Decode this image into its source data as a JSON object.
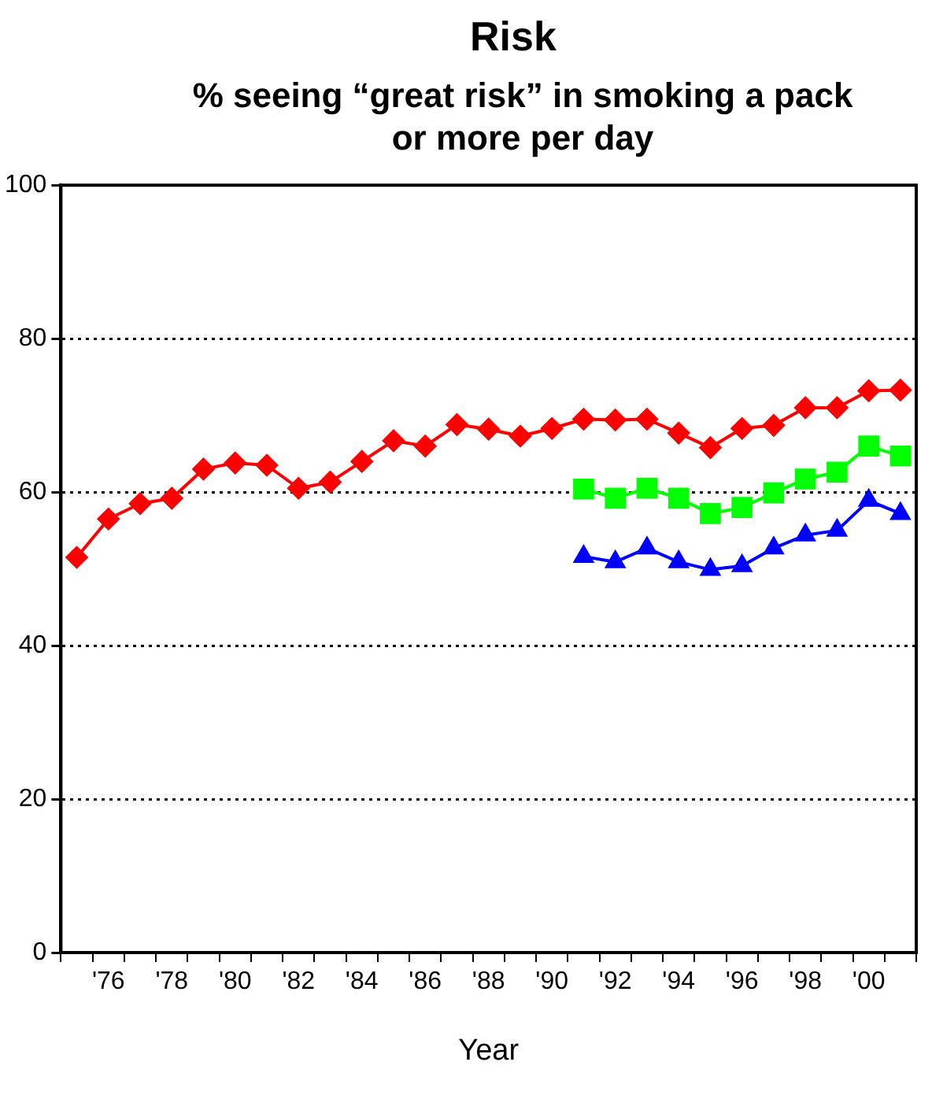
{
  "chart_data": {
    "type": "line",
    "title": "Risk",
    "subtitle": "% seeing “great risk” in smoking a pack or more per day",
    "xlabel": "Year",
    "categories": [
      null,
      "'76",
      null,
      "'78",
      null,
      "'80",
      null,
      "'82",
      null,
      "'84",
      null,
      "'86",
      null,
      "'88",
      null,
      "'90",
      null,
      "'92",
      null,
      "'94",
      null,
      "'96",
      null,
      "'98",
      null,
      "'00",
      null
    ],
    "series": [
      {
        "color": "#ff0000",
        "marker": "diamond",
        "values": [
          51.5,
          56.5,
          58.5,
          59.2,
          63,
          63.8,
          63.5,
          60.5,
          61.3,
          64,
          66.7,
          66,
          68.8,
          68.2,
          67.3,
          68.3,
          69.5,
          69.4,
          69.5,
          67.7,
          65.8,
          68.3,
          68.7,
          71,
          71,
          73.2,
          73.3
        ]
      },
      {
        "color": "#00ff00",
        "marker": "square",
        "values": [
          null,
          null,
          null,
          null,
          null,
          null,
          null,
          null,
          null,
          null,
          null,
          null,
          null,
          null,
          null,
          null,
          60.4,
          59.2,
          60.5,
          59.2,
          57.2,
          58,
          59.9,
          61.7,
          62.6,
          66,
          64.7
        ]
      },
      {
        "color": "#0000ff",
        "marker": "triangle",
        "values": [
          null,
          null,
          null,
          null,
          null,
          null,
          null,
          null,
          null,
          null,
          null,
          null,
          null,
          null,
          null,
          null,
          51.6,
          50.9,
          52.7,
          50.9,
          49.9,
          50.4,
          52.7,
          54.4,
          55,
          58.9,
          57.2
        ]
      }
    ],
    "ylim": [
      0,
      100
    ],
    "yticks": [
      0,
      20,
      40,
      60,
      80,
      100
    ],
    "grid": "y",
    "legend": false,
    "line_style": "solid"
  }
}
